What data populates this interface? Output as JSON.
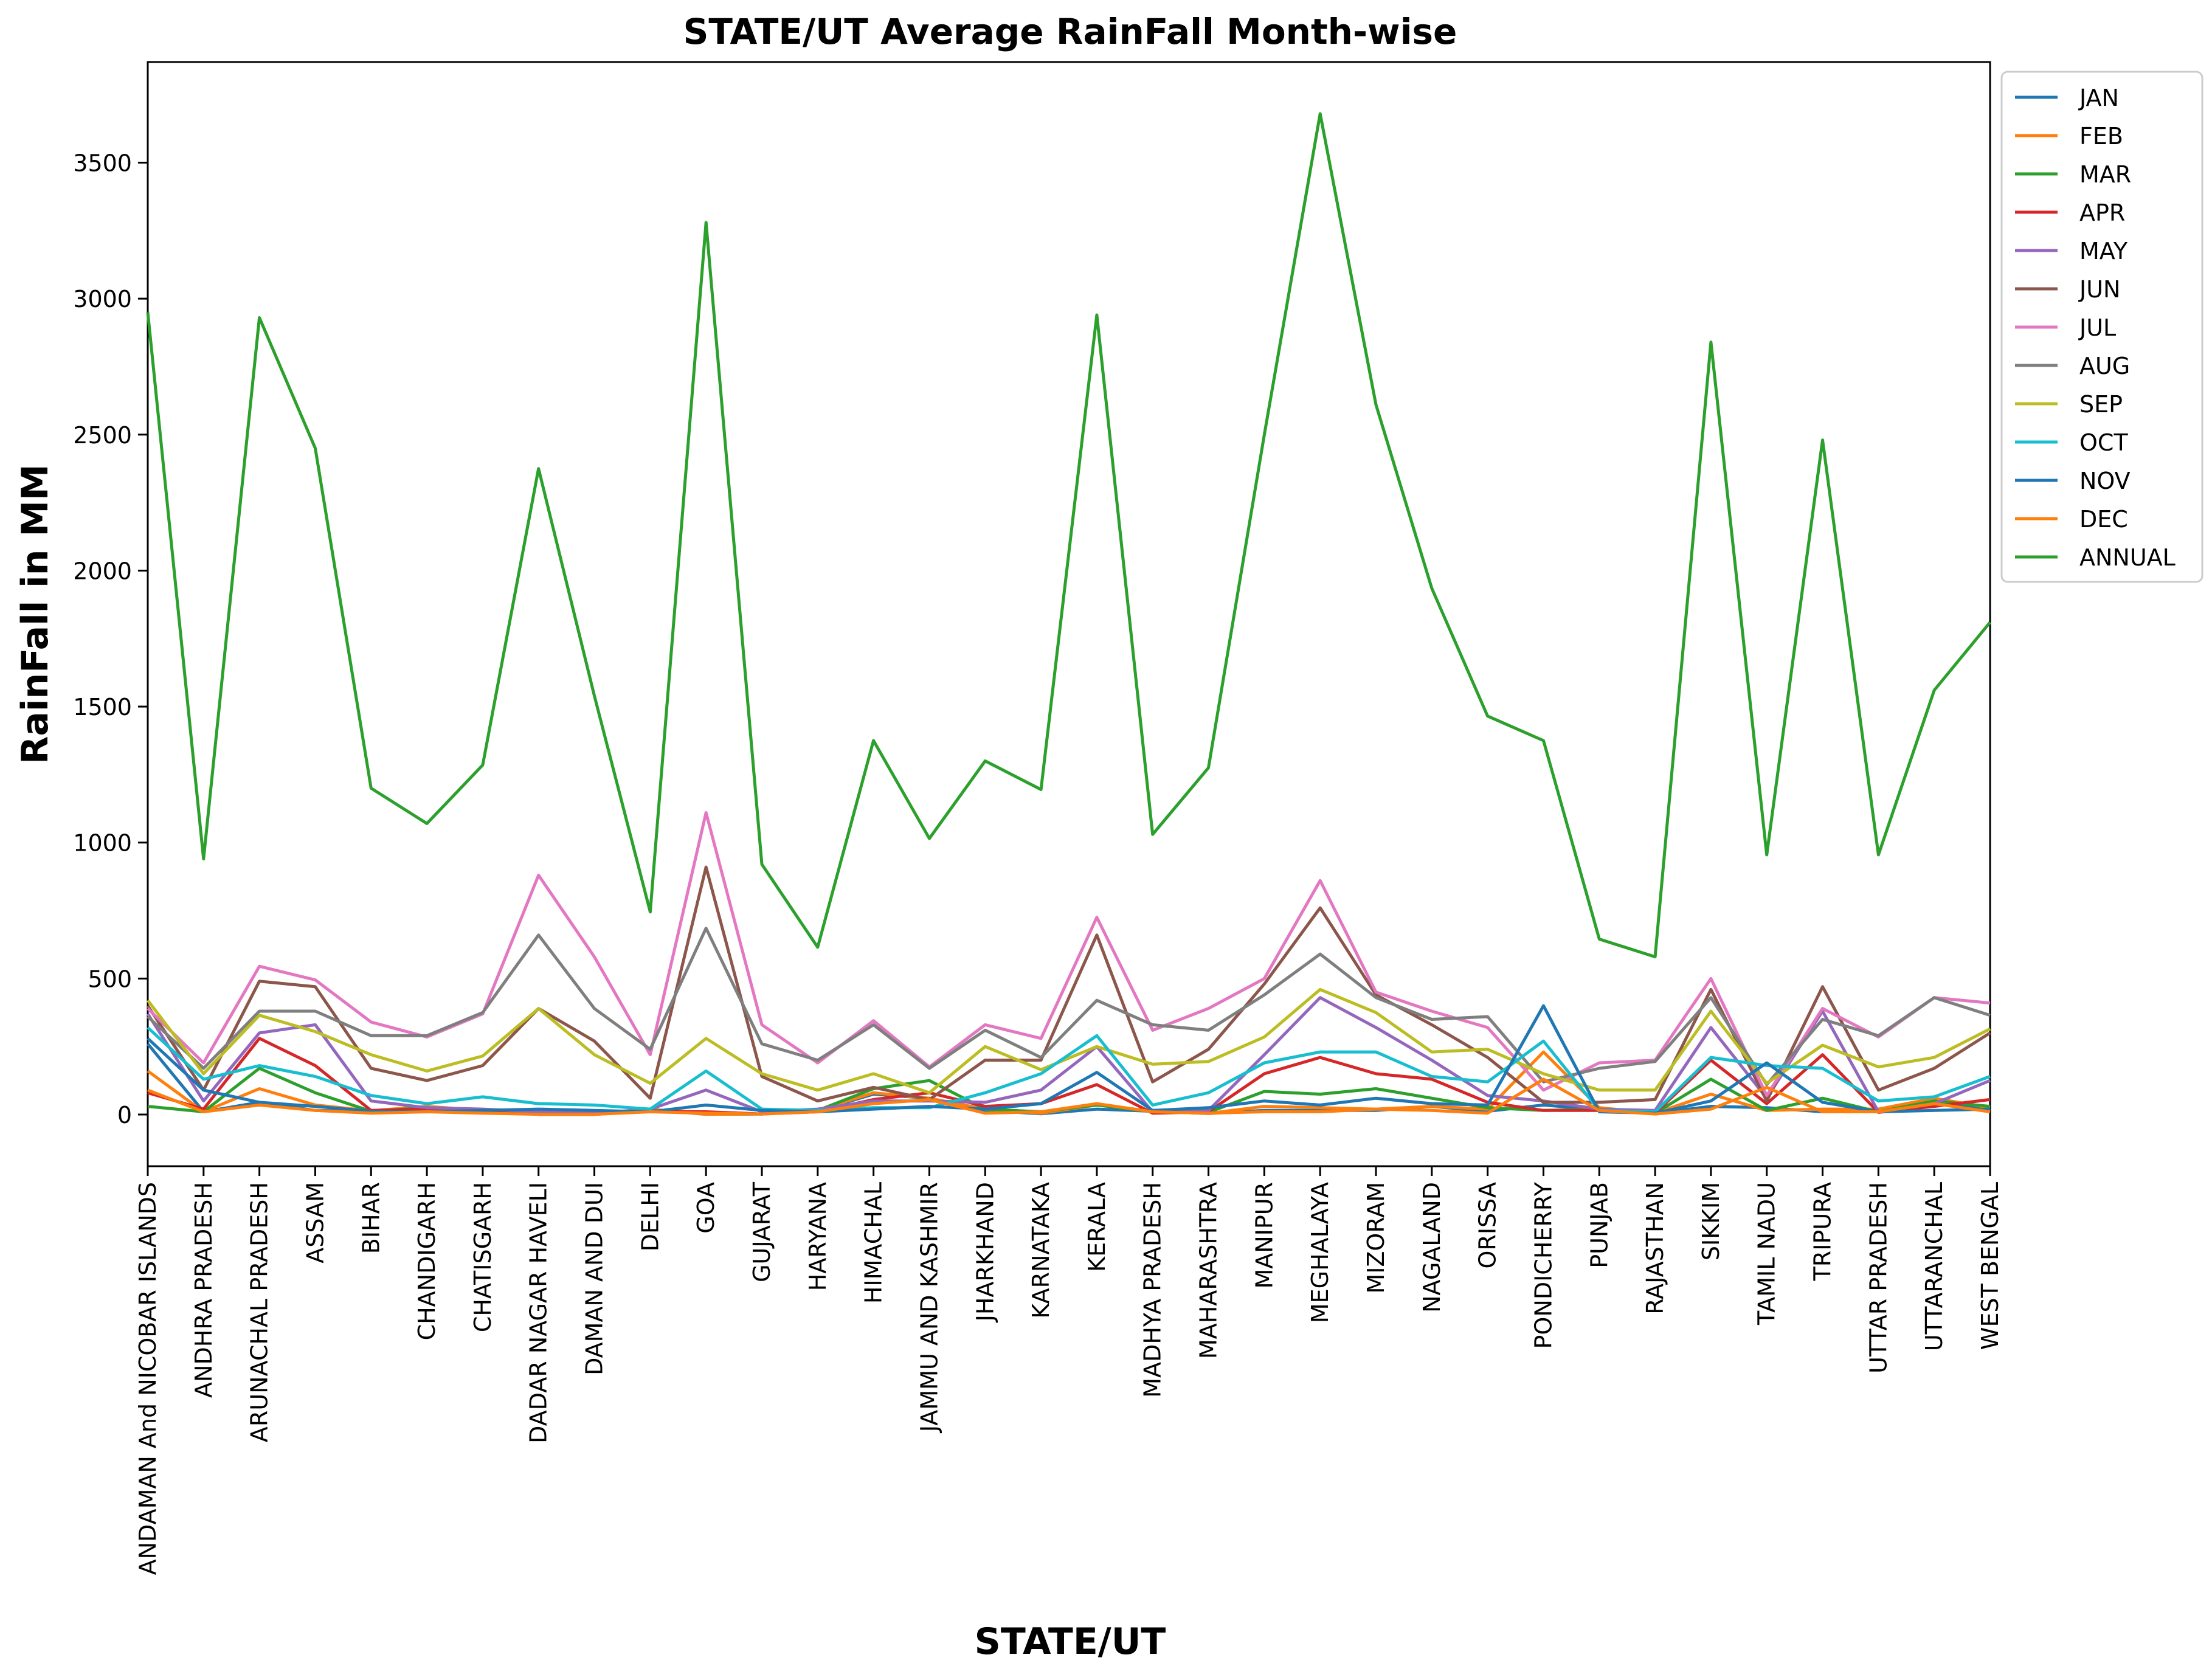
{
  "chart_data": {
    "type": "line",
    "title": "STATE/UT Average RainFall Month-wise",
    "xlabel": "STATE/UT",
    "ylabel": "RainFall in MM",
    "ylim": [
      -190,
      3870
    ],
    "yticks": [
      0,
      500,
      1000,
      1500,
      2000,
      2500,
      3000,
      3500
    ],
    "grid": false,
    "legend_position": "outside-top-right",
    "categories": [
      "ANDAMAN And NICOBAR ISLANDS",
      "ANDHRA PRADESH",
      "ARUNACHAL PRADESH",
      "ASSAM",
      "BIHAR",
      "CHANDIGARH",
      "CHATISGARH",
      "DADAR NAGAR HAVELI",
      "DAMAN AND DUI",
      "DELHI",
      "GOA",
      "GUJARAT",
      "HARYANA",
      "HIMACHAL",
      "JAMMU AND KASHMIR",
      "JHARKHAND",
      "KARNATAKA",
      "KERALA",
      "MADHYA PRADESH",
      "MAHARASHTRA",
      "MANIPUR",
      "MEGHALAYA",
      "MIZORAM",
      "NAGALAND",
      "ORISSA",
      "PONDICHERRY",
      "PUNJAB",
      "RAJASTHAN",
      "SIKKIM",
      "TAMIL NADU",
      "TRIPURA",
      "UTTAR PRADESH",
      "UTTARANCHAL",
      "WEST BENGAL"
    ],
    "series": [
      {
        "name": "JAN",
        "color": "#1f77b4",
        "values": [
          260,
          10,
          45,
          15,
          12,
          15,
          10,
          1,
          1,
          18,
          1,
          2,
          14,
          75,
          60,
          15,
          3,
          20,
          12,
          4,
          15,
          15,
          15,
          30,
          12,
          35,
          18,
          5,
          30,
          25,
          10,
          20,
          55,
          15
        ]
      },
      {
        "name": "FEB",
        "color": "#ff7f0e",
        "values": [
          160,
          10,
          95,
          35,
          14,
          30,
          15,
          1,
          1,
          20,
          1,
          2,
          15,
          80,
          60,
          20,
          5,
          35,
          12,
          4,
          30,
          25,
          20,
          30,
          20,
          230,
          25,
          5,
          75,
          15,
          20,
          20,
          60,
          25
        ]
      },
      {
        "name": "MAR",
        "color": "#2ca02c",
        "values": [
          30,
          10,
          170,
          80,
          12,
          25,
          15,
          1,
          1,
          15,
          5,
          2,
          15,
          95,
          125,
          20,
          10,
          35,
          10,
          8,
          85,
          75,
          95,
          60,
          25,
          15,
          20,
          5,
          130,
          15,
          60,
          10,
          50,
          30
        ]
      },
      {
        "name": "APR",
        "color": "#d62728",
        "values": [
          80,
          20,
          280,
          180,
          15,
          20,
          15,
          1,
          1,
          12,
          10,
          2,
          10,
          55,
          80,
          30,
          40,
          110,
          5,
          10,
          150,
          210,
          150,
          130,
          45,
          15,
          15,
          5,
          200,
          40,
          220,
          8,
          30,
          55
        ]
      },
      {
        "name": "MAY",
        "color": "#9467bd",
        "values": [
          370,
          50,
          300,
          330,
          50,
          25,
          20,
          10,
          5,
          20,
          90,
          10,
          20,
          50,
          50,
          45,
          90,
          250,
          10,
          15,
          220,
          430,
          320,
          200,
          70,
          50,
          20,
          15,
          320,
          60,
          380,
          10,
          40,
          125
        ]
      },
      {
        "name": "JUN",
        "color": "#8c564b",
        "values": [
          400,
          90,
          490,
          470,
          170,
          125,
          180,
          390,
          270,
          60,
          910,
          140,
          50,
          100,
          55,
          200,
          200,
          660,
          120,
          240,
          480,
          760,
          440,
          330,
          210,
          45,
          45,
          55,
          460,
          50,
          470,
          90,
          170,
          300
        ]
      },
      {
        "name": "JUL",
        "color": "#e377c2",
        "values": [
          390,
          190,
          545,
          495,
          340,
          285,
          370,
          880,
          580,
          220,
          1110,
          330,
          190,
          345,
          175,
          330,
          280,
          725,
          310,
          390,
          500,
          860,
          450,
          380,
          320,
          90,
          190,
          200,
          500,
          70,
          390,
          285,
          430,
          410
        ]
      },
      {
        "name": "AUG",
        "color": "#7f7f7f",
        "values": [
          360,
          170,
          380,
          380,
          290,
          290,
          375,
          660,
          390,
          240,
          685,
          260,
          200,
          330,
          170,
          310,
          210,
          420,
          330,
          310,
          440,
          590,
          430,
          350,
          360,
          120,
          170,
          195,
          430,
          110,
          350,
          290,
          430,
          365
        ]
      },
      {
        "name": "SEP",
        "color": "#bcbd22",
        "values": [
          420,
          150,
          365,
          305,
          220,
          160,
          215,
          390,
          220,
          115,
          280,
          150,
          90,
          150,
          80,
          250,
          165,
          250,
          185,
          195,
          285,
          460,
          375,
          230,
          240,
          150,
          90,
          90,
          380,
          115,
          255,
          175,
          210,
          315
        ]
      },
      {
        "name": "OCT",
        "color": "#17becf",
        "values": [
          320,
          130,
          180,
          140,
          70,
          40,
          65,
          40,
          35,
          20,
          160,
          20,
          15,
          25,
          25,
          80,
          150,
          290,
          35,
          80,
          190,
          230,
          230,
          140,
          120,
          270,
          15,
          10,
          210,
          180,
          170,
          50,
          65,
          140
        ]
      },
      {
        "name": "NOV",
        "color": "#1f77b4",
        "values": [
          280,
          90,
          45,
          30,
          12,
          10,
          15,
          20,
          15,
          10,
          35,
          15,
          10,
          20,
          30,
          20,
          40,
          155,
          15,
          25,
          50,
          35,
          60,
          40,
          35,
          400,
          10,
          5,
          50,
          190,
          45,
          10,
          15,
          20
        ]
      },
      {
        "name": "DEC",
        "color": "#ff7f0e",
        "values": [
          90,
          10,
          35,
          15,
          5,
          10,
          5,
          1,
          1,
          10,
          5,
          2,
          10,
          40,
          55,
          5,
          10,
          40,
          10,
          5,
          10,
          10,
          20,
          15,
          5,
          130,
          15,
          2,
          20,
          100,
          10,
          10,
          40,
          10
        ]
      },
      {
        "name": "ANNUAL",
        "color": "#2ca02c",
        "values": [
          2950,
          940,
          2930,
          2450,
          1200,
          1070,
          1285,
          2375,
          1540,
          745,
          3280,
          920,
          615,
          1375,
          1015,
          1300,
          1195,
          2940,
          1030,
          1275,
          2500,
          3680,
          2610,
          1935,
          1465,
          1375,
          645,
          580,
          2840,
          955,
          2480,
          955,
          1560,
          1810
        ]
      }
    ]
  }
}
